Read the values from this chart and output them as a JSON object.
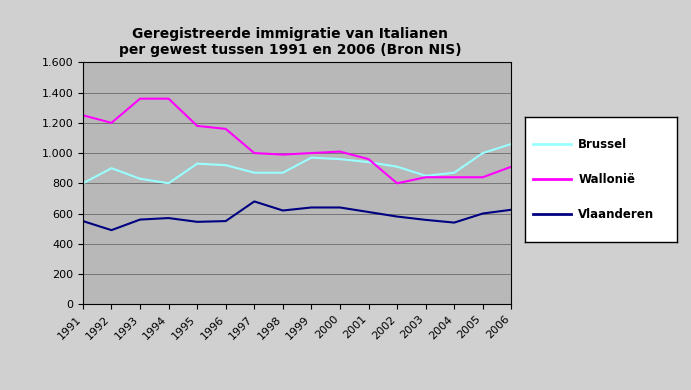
{
  "title": "Geregistreerde immigratie van Italianen\nper gewest tussen 1991 en 2006 (Bron NIS)",
  "years": [
    1991,
    1992,
    1993,
    1994,
    1995,
    1996,
    1997,
    1998,
    1999,
    2000,
    2001,
    2002,
    2003,
    2004,
    2005,
    2006
  ],
  "brussel": [
    800,
    900,
    830,
    800,
    930,
    920,
    870,
    870,
    970,
    960,
    940,
    910,
    850,
    870,
    1000,
    1060
  ],
  "wallonie": [
    1250,
    1200,
    1360,
    1360,
    1180,
    1160,
    1000,
    990,
    1000,
    1010,
    960,
    800,
    840,
    840,
    840,
    910
  ],
  "vlaanderen": [
    550,
    490,
    560,
    570,
    545,
    550,
    680,
    620,
    640,
    640,
    610,
    580,
    558,
    540,
    600,
    625
  ],
  "brussel_color": "#99ffff",
  "wallonie_color": "#ff00ff",
  "vlaanderen_color": "#000080",
  "background_plot": "#b8b8b8",
  "background_fig": "#d0d0d0",
  "ylim": [
    0,
    1600
  ],
  "yticks": [
    0,
    200,
    400,
    600,
    800,
    1000,
    1200,
    1400,
    1600
  ],
  "ytick_labels": [
    "0",
    "200",
    "400",
    "600",
    "800",
    "1.000",
    "1.200",
    "1.400",
    "1.600"
  ]
}
